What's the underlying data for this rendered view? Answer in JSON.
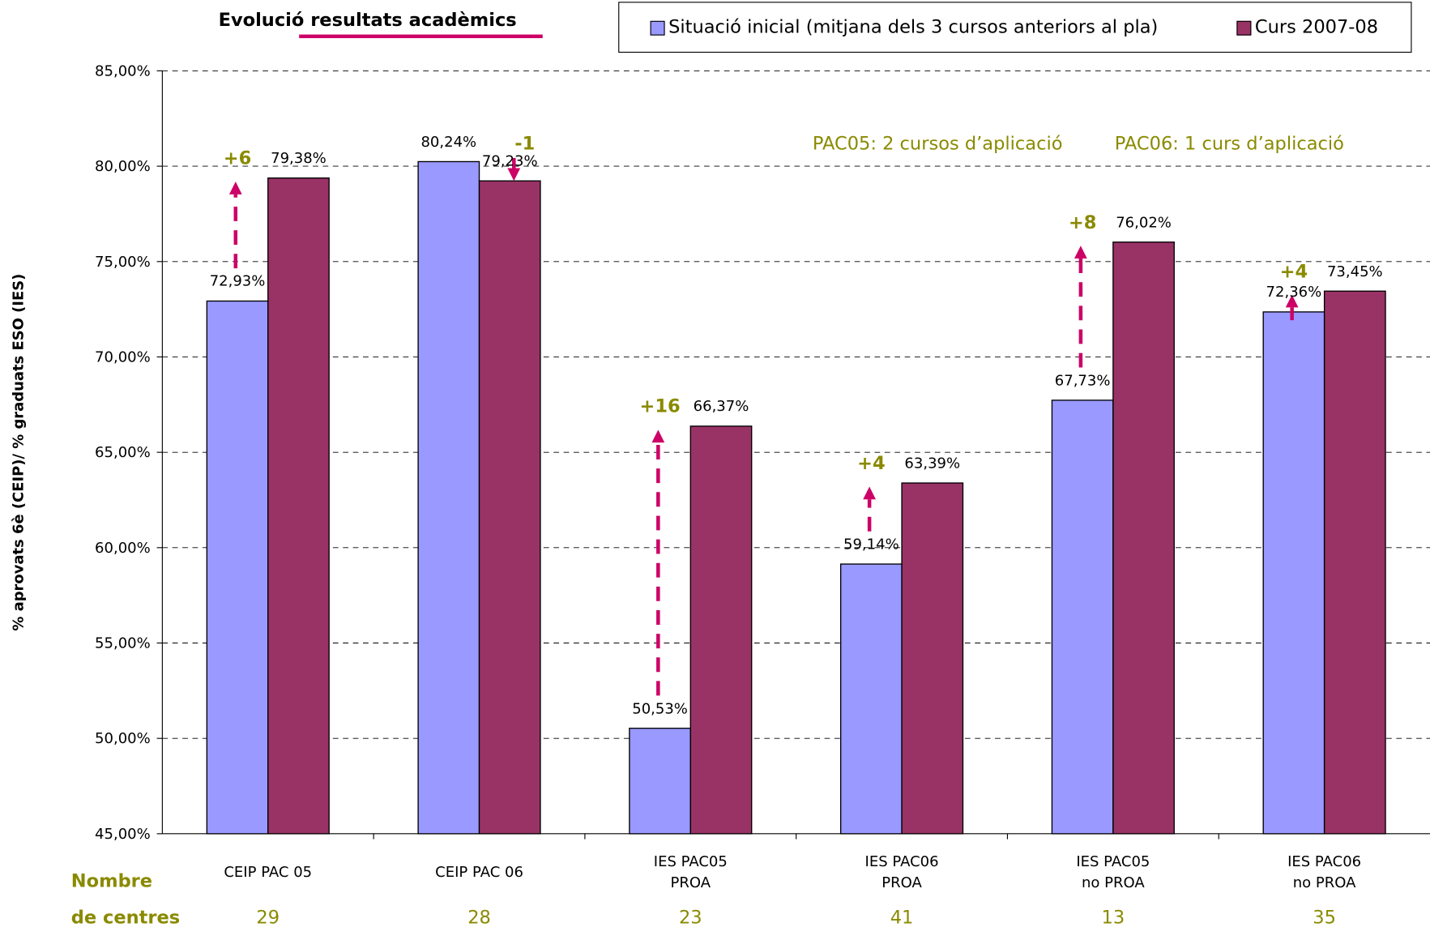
{
  "chart_data": {
    "type": "bar",
    "title": "Evolució resultats acadèmics",
    "y_axis_label": "% aprovats 6è (CEIP)/ % graduats ESO (IES)",
    "categories": [
      "CEIP PAC 05",
      "CEIP PAC 06",
      "IES PAC05\nPROA",
      "IES PAC06\nPROA",
      "IES PAC05\nno PROA",
      "IES PAC06\nno PROA"
    ],
    "series": [
      {
        "name": "Situació inicial (mitjana dels 3 cursos anteriors al pla)",
        "color": "#9999ff",
        "values": [
          72.93,
          80.24,
          50.53,
          59.14,
          67.73,
          72.36
        ],
        "value_labels": [
          "72,93%",
          "80,24%",
          "50,53%",
          "59,14%",
          "67,73%",
          "72,36%"
        ]
      },
      {
        "name": "Curs 2007-08",
        "color": "#993366",
        "values": [
          79.38,
          79.23,
          66.37,
          63.39,
          76.02,
          73.45
        ],
        "value_labels": [
          "79,38%",
          "79,23%",
          "66,37%",
          "63,39%",
          "76,02%",
          "73,45%"
        ]
      }
    ],
    "ylim": [
      45,
      85
    ],
    "yticks": [
      {
        "value": 45,
        "label": "45,00%"
      },
      {
        "value": 50,
        "label": "50,00%"
      },
      {
        "value": 55,
        "label": "55,00%"
      },
      {
        "value": 60,
        "label": "60,00%"
      },
      {
        "value": 65,
        "label": "65,00%"
      },
      {
        "value": 70,
        "label": "70,00%"
      },
      {
        "value": 75,
        "label": "75,00%"
      },
      {
        "value": 80,
        "label": "80,00%"
      },
      {
        "value": 85,
        "label": "85,00%"
      }
    ],
    "grid": true,
    "differences": [
      "+6",
      "-1",
      "+16",
      "+4",
      "+8",
      "+4"
    ],
    "annotations": [
      "PAC05: 2 cursos d’aplicació",
      "PAC06: 1 curs d’aplicació"
    ],
    "counts_label": [
      "Nombre",
      "de centres"
    ],
    "counts": [
      29,
      28,
      23,
      41,
      13,
      35
    ]
  }
}
